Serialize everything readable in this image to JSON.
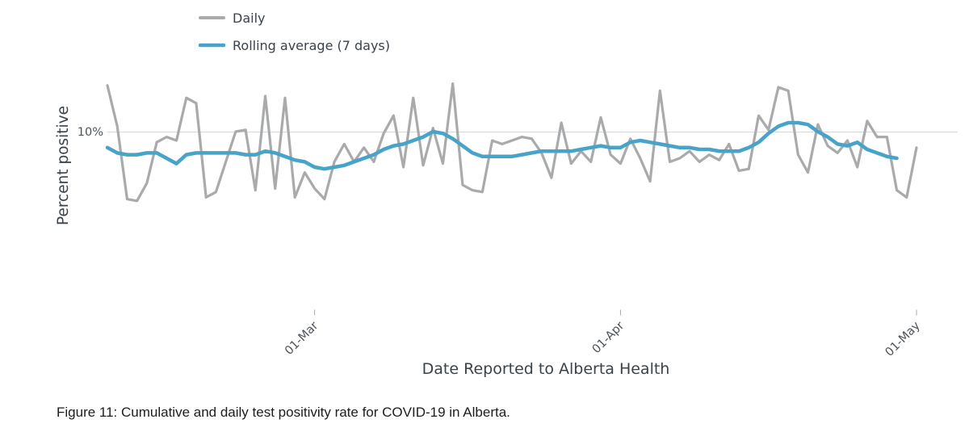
{
  "legend": {
    "items": [
      {
        "label": "Daily",
        "color": "#a8aaac"
      },
      {
        "label": "Rolling average (7 days)",
        "color": "#47a3c8"
      }
    ]
  },
  "axes": {
    "y_title": "Percent positive",
    "y_tick_label": "10%",
    "y_tick_value": 10,
    "x_title": "Date Reported to Alberta Health",
    "x_ticks": [
      {
        "label": "01-Mar",
        "index": 21
      },
      {
        "label": "01-Apr",
        "index": 52
      },
      {
        "label": "01-May",
        "index": 82
      }
    ]
  },
  "caption": "Figure 11: Cumulative and daily test positivity rate for COVID-19 in Alberta.",
  "chart_data": {
    "type": "line",
    "title": "",
    "xlabel": "Date Reported to Alberta Health",
    "ylabel": "Percent positive",
    "ylim": [
      0,
      13.3
    ],
    "grid": "single horizontal gridline at 10%",
    "y_gridlines": [
      10
    ],
    "legend_position": "top-left",
    "x_tick_labels": [
      "01-Mar",
      "01-Apr",
      "01-May"
    ],
    "series": [
      {
        "name": "Daily",
        "color": "#a8aaac",
        "width": 3.2,
        "values": [
          12.6,
          10.3,
          6.2,
          6.1,
          7.1,
          9.4,
          9.7,
          9.5,
          11.9,
          11.6,
          6.3,
          6.6,
          8.3,
          10.0,
          10.1,
          6.7,
          12.0,
          6.8,
          11.9,
          6.3,
          7.7,
          6.8,
          6.2,
          8.3,
          9.3,
          8.3,
          9.1,
          8.3,
          9.9,
          10.9,
          8.0,
          11.9,
          8.1,
          10.2,
          8.2,
          12.7,
          7.0,
          6.7,
          6.6,
          9.5,
          9.3,
          9.5,
          9.7,
          9.6,
          8.8,
          7.4,
          10.5,
          8.2,
          8.9,
          8.3,
          10.8,
          8.7,
          8.2,
          9.6,
          8.5,
          7.2,
          12.3,
          8.3,
          8.5,
          8.9,
          8.3,
          8.7,
          8.4,
          9.3,
          7.8,
          7.9,
          10.9,
          10.1,
          12.5,
          12.3,
          8.7,
          7.7,
          10.4,
          9.2,
          8.8,
          9.5,
          8.0,
          10.6,
          9.7,
          9.7,
          6.7,
          6.3,
          9.1
        ]
      },
      {
        "name": "Rolling average (7 days)",
        "color": "#47a3c8",
        "width": 4.5,
        "values": [
          9.1,
          8.8,
          8.7,
          8.7,
          8.8,
          8.8,
          8.5,
          8.2,
          8.7,
          8.8,
          8.8,
          8.8,
          8.8,
          8.8,
          8.7,
          8.7,
          8.9,
          8.8,
          8.6,
          8.4,
          8.3,
          8.0,
          7.9,
          8.0,
          8.1,
          8.3,
          8.5,
          8.7,
          9.0,
          9.2,
          9.3,
          9.5,
          9.7,
          10.0,
          9.9,
          9.6,
          9.2,
          8.8,
          8.6,
          8.6,
          8.6,
          8.6,
          8.7,
          8.8,
          8.9,
          8.9,
          8.9,
          8.9,
          9.0,
          9.1,
          9.2,
          9.1,
          9.1,
          9.4,
          9.5,
          9.4,
          9.3,
          9.2,
          9.1,
          9.1,
          9.0,
          9.0,
          8.9,
          8.9,
          8.9,
          9.1,
          9.4,
          9.9,
          10.3,
          10.5,
          10.5,
          10.4,
          10.0,
          9.7,
          9.3,
          9.2,
          9.4,
          9.0,
          8.8,
          8.6,
          8.5
        ]
      }
    ]
  }
}
